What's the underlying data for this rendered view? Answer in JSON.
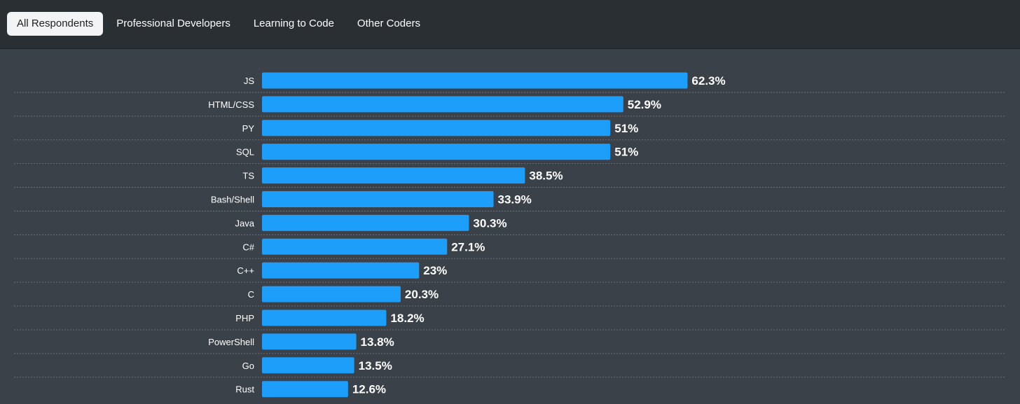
{
  "tabs": [
    {
      "label": "All Respondents",
      "active": true
    },
    {
      "label": "Professional Developers",
      "active": false
    },
    {
      "label": "Learning to Code",
      "active": false
    },
    {
      "label": "Other Coders",
      "active": false
    }
  ],
  "colors": {
    "bar": "#1e9efb",
    "background": "#3b4149",
    "tabbar": "#2a2f34",
    "gridline": "#6b7178"
  },
  "chart_data": {
    "type": "bar",
    "orientation": "horizontal",
    "categories": [
      "JS",
      "HTML/CSS",
      "PY",
      "SQL",
      "TS",
      "Bash/Shell",
      "Java",
      "C#",
      "C++",
      "C",
      "PHP",
      "PowerShell",
      "Go",
      "Rust"
    ],
    "values": [
      62.3,
      52.9,
      51,
      51,
      38.5,
      33.9,
      30.3,
      27.1,
      23,
      20.3,
      18.2,
      13.8,
      13.5,
      12.6
    ],
    "value_labels": [
      "62.3%",
      "52.9%",
      "51%",
      "51%",
      "38.5%",
      "33.9%",
      "30.3%",
      "27.1%",
      "23%",
      "20.3%",
      "18.2%",
      "13.8%",
      "13.5%",
      "12.6%"
    ],
    "unit": "%",
    "xlim": [
      0,
      100
    ],
    "title": "",
    "xlabel": "",
    "ylabel": ""
  }
}
